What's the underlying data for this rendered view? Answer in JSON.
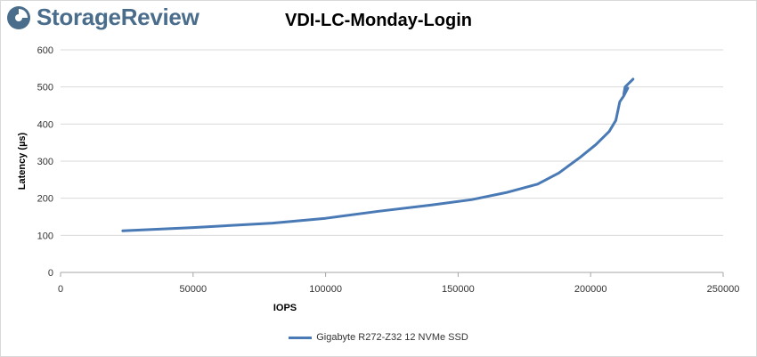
{
  "brand": {
    "name": "StorageReview",
    "color": "#4a6d8c",
    "icon": "storagereview-logo-icon"
  },
  "chart_data": {
    "type": "line",
    "title": "VDI-LC-Monday-Login",
    "xlabel": "IOPS",
    "ylabel": "Latency (µs)",
    "xlim": [
      0,
      250000
    ],
    "ylim": [
      0,
      600
    ],
    "xticks": [
      0,
      50000,
      100000,
      150000,
      200000,
      250000
    ],
    "yticks": [
      0,
      100,
      200,
      300,
      400,
      500,
      600
    ],
    "xtick_labels": [
      "0",
      "50000",
      "100000",
      "150000",
      "200000",
      "250000"
    ],
    "ytick_labels": [
      "0",
      "100",
      "200",
      "300",
      "400",
      "500",
      "600"
    ],
    "grid": "horizontal",
    "legend_position": "bottom",
    "series": [
      {
        "name": "Gigabyte R272-Z32 12 NVMe SSD",
        "color": "#4a7ab5",
        "points": [
          [
            23500,
            112
          ],
          [
            50000,
            121
          ],
          [
            80000,
            133
          ],
          [
            100000,
            146
          ],
          [
            120000,
            165
          ],
          [
            140000,
            182
          ],
          [
            155000,
            196
          ],
          [
            168000,
            215
          ],
          [
            180000,
            238
          ],
          [
            188000,
            268
          ],
          [
            196000,
            310
          ],
          [
            202000,
            345
          ],
          [
            207000,
            380
          ],
          [
            209500,
            410
          ],
          [
            211000,
            460
          ],
          [
            212500,
            476
          ],
          [
            214000,
            497
          ],
          [
            212500,
            480
          ],
          [
            213000,
            500
          ],
          [
            216000,
            521
          ]
        ]
      }
    ]
  }
}
